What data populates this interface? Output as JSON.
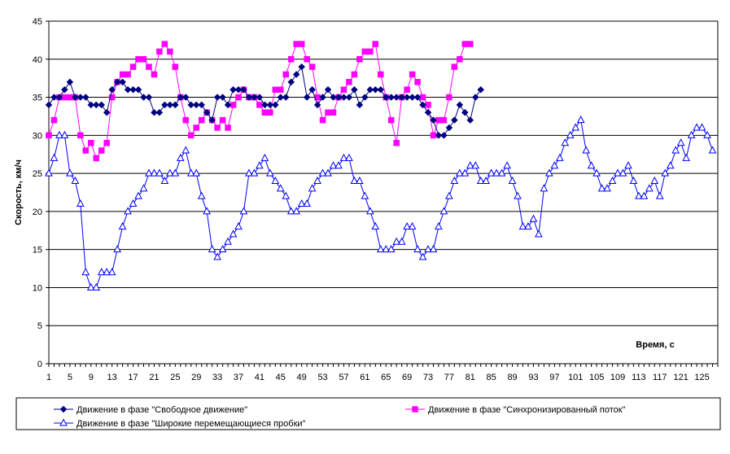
{
  "chart_data": {
    "type": "line",
    "xlabel": "Время, с",
    "ylabel": "Скорость, км/ч",
    "ylim": [
      0,
      45
    ],
    "yticks": [
      0,
      5,
      10,
      15,
      20,
      25,
      30,
      35,
      40,
      45
    ],
    "xticks": [
      1,
      5,
      9,
      13,
      17,
      21,
      25,
      29,
      33,
      37,
      41,
      45,
      49,
      53,
      57,
      61,
      65,
      69,
      73,
      77,
      81,
      85,
      89,
      93,
      97,
      101,
      105,
      109,
      113,
      117,
      121,
      125
    ],
    "xlim": [
      1,
      128
    ],
    "grid": "horizontal",
    "legend_position": "bottom",
    "series": [
      {
        "name": "Движение в фазе \"Свободное движение\"",
        "color": "#00007F",
        "marker": "diamond",
        "start_x": 1,
        "values": [
          34,
          35,
          35,
          36,
          37,
          35,
          35,
          35,
          34,
          34,
          34,
          33,
          36,
          37,
          37,
          36,
          36,
          36,
          35,
          35,
          33,
          33,
          34,
          34,
          34,
          35,
          35,
          34,
          34,
          34,
          33,
          32,
          35,
          35,
          34,
          36,
          36,
          36,
          35,
          35,
          35,
          34,
          34,
          34,
          35,
          35,
          37,
          38,
          39,
          35,
          36,
          34,
          35,
          36,
          35,
          35,
          35,
          35,
          36,
          34,
          35,
          36,
          36,
          36,
          35,
          35,
          35,
          35,
          35,
          35,
          35,
          34,
          33,
          32,
          30,
          30,
          31,
          32,
          34,
          33,
          32,
          35,
          36
        ]
      },
      {
        "name": "Движение в фазе \"Синхронизированный поток\"",
        "color": "#FF00FF",
        "marker": "square",
        "start_x": 1,
        "values": [
          30,
          32,
          35,
          35,
          35,
          35,
          30,
          28,
          29,
          27,
          28,
          29,
          35,
          37,
          38,
          38,
          39,
          40,
          40,
          39,
          38,
          41,
          42,
          41,
          39,
          35,
          32,
          30,
          31,
          32,
          33,
          32,
          31,
          32,
          31,
          34,
          35,
          36,
          35,
          35,
          34,
          33,
          33,
          36,
          36,
          38,
          40,
          42,
          42,
          40,
          39,
          35,
          32,
          33,
          33,
          35,
          36,
          37,
          38,
          40,
          41,
          41,
          42,
          38,
          35,
          32,
          29,
          35,
          36,
          38,
          37,
          35,
          34,
          30,
          32,
          32,
          35,
          39,
          40,
          42,
          42
        ]
      },
      {
        "name": "Движение в фазе \"Широкие перемещающиеся пробки\"",
        "color": "#0000FF",
        "marker": "triangle",
        "start_x": 1,
        "values": [
          25,
          27,
          30,
          30,
          25,
          24,
          21,
          12,
          10,
          10,
          12,
          12,
          12,
          15,
          18,
          20,
          21,
          22,
          23,
          25,
          25,
          25,
          24,
          25,
          25,
          27,
          28,
          25,
          25,
          22,
          20,
          15,
          14,
          15,
          16,
          17,
          18,
          20,
          25,
          25,
          26,
          27,
          25,
          24,
          23,
          22,
          20,
          20,
          21,
          21,
          23,
          24,
          25,
          25,
          26,
          26,
          27,
          27,
          24,
          24,
          22,
          20,
          18,
          15,
          15,
          15,
          16,
          16,
          18,
          18,
          15,
          14,
          15,
          15,
          18,
          20,
          22,
          24,
          25,
          25,
          26,
          26,
          24,
          24,
          25,
          25,
          25,
          26,
          24,
          22,
          18,
          18,
          19,
          17,
          23,
          25,
          26,
          27,
          29,
          30,
          31,
          32,
          28,
          26,
          25,
          23,
          23,
          24,
          25,
          25,
          26,
          24,
          22,
          22,
          23,
          24,
          22,
          25,
          26,
          28,
          29,
          27,
          30,
          31,
          31,
          30,
          28
        ]
      }
    ]
  }
}
